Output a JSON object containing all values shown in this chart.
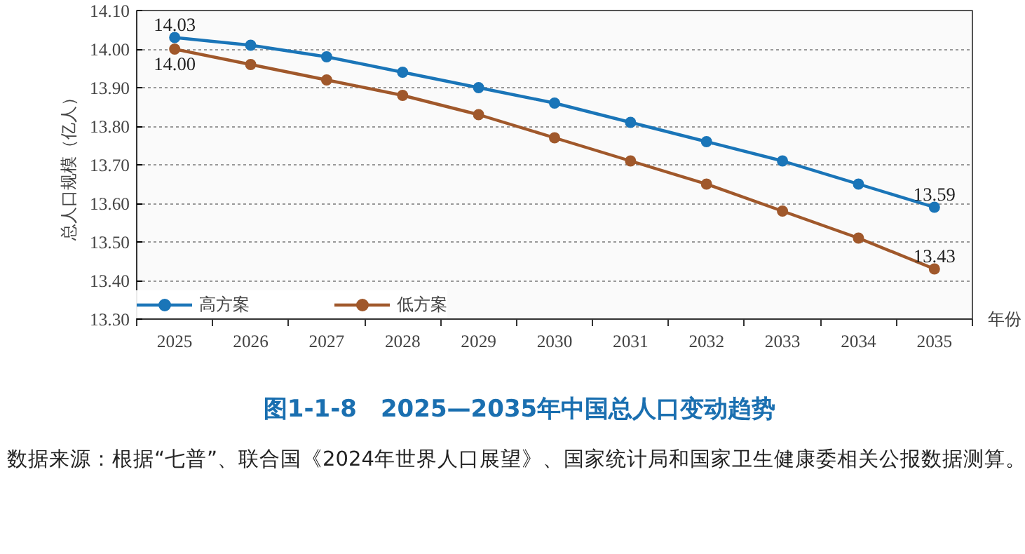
{
  "chart_data": {
    "type": "line",
    "title": "图1-1-8　2025—2035年中国总人口变动趋势",
    "ylabel": "总人口规模（亿人）",
    "xlabel": "年份",
    "categories": [
      "2025",
      "2026",
      "2027",
      "2028",
      "2029",
      "2030",
      "2031",
      "2032",
      "2033",
      "2034",
      "2035"
    ],
    "series": [
      {
        "name": "高方案",
        "color": "#1a75b8",
        "values": [
          14.03,
          14.01,
          13.98,
          13.94,
          13.9,
          13.86,
          13.81,
          13.76,
          13.71,
          13.65,
          13.59
        ],
        "value_labels": [
          "14.03",
          null,
          null,
          null,
          null,
          null,
          null,
          null,
          null,
          null,
          "13.59"
        ]
      },
      {
        "name": "低方案",
        "color": "#a0582b",
        "values": [
          14.0,
          13.96,
          13.92,
          13.88,
          13.83,
          13.77,
          13.71,
          13.65,
          13.58,
          13.51,
          13.43
        ],
        "value_labels": [
          "14.00",
          null,
          null,
          null,
          null,
          null,
          null,
          null,
          null,
          null,
          "13.43"
        ]
      }
    ],
    "ylim": [
      13.3,
      14.1
    ],
    "yticks": [
      {
        "value": 13.3,
        "label": "13.30"
      },
      {
        "value": 13.4,
        "label": "13.40"
      },
      {
        "value": 13.5,
        "label": "13.50"
      },
      {
        "value": 13.6,
        "label": "13.60"
      },
      {
        "value": 13.7,
        "label": "13.70"
      },
      {
        "value": 13.8,
        "label": "13.80"
      },
      {
        "value": 13.9,
        "label": "13.90"
      },
      {
        "value": 14.0,
        "label": "14.00"
      },
      {
        "value": 14.1,
        "label": "14.10"
      }
    ],
    "grid": "y",
    "legend": "bottom",
    "marker": "circle",
    "line_style": "solid",
    "annotations": [
      "数据来源：根据“七普”、联合国《2024年世界人口展望》、国家统计局和国家卫生健康委相关公报数据测算。"
    ]
  }
}
